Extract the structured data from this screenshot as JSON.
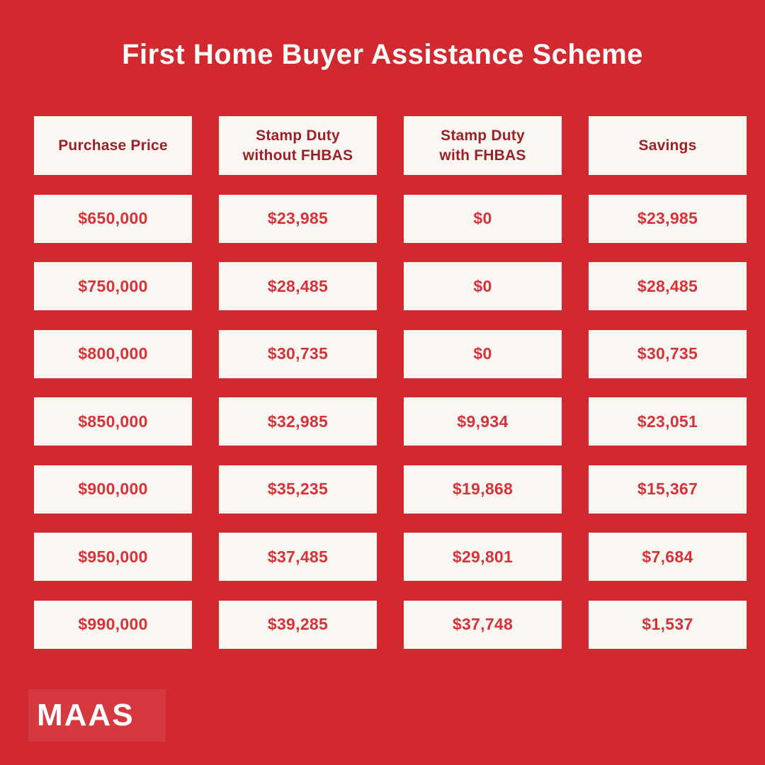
{
  "page": {
    "title": "First Home Buyer Assistance Scheme",
    "background_color": "#d22931",
    "cell_background": "#faf7f3",
    "header_text_color": "#9c2127",
    "value_text_color": "#d5333a",
    "title_color": "#fdfcfa"
  },
  "table": {
    "headers": [
      "Purchase Price",
      "Stamp Duty\nwithout FHBAS",
      "Stamp Duty\nwith FHBAS",
      "Savings"
    ]
  },
  "logo": {
    "text": "MAAS",
    "box_color": "#d63840"
  },
  "chart_data": {
    "type": "table",
    "title": "First Home Buyer Assistance Scheme",
    "columns": [
      "Purchase Price",
      "Stamp Duty without FHBAS",
      "Stamp Duty with FHBAS",
      "Savings"
    ],
    "rows": [
      [
        "$650,000",
        "$23,985",
        "$0",
        "$23,985"
      ],
      [
        "$750,000",
        "$28,485",
        "$0",
        "$28,485"
      ],
      [
        "$800,000",
        "$30,735",
        "$0",
        "$30,735"
      ],
      [
        "$850,000",
        "$32,985",
        "$9,934",
        "$23,051"
      ],
      [
        "$900,000",
        "$35,235",
        "$19,868",
        "$15,367"
      ],
      [
        "$950,000",
        "$37,485",
        "$29,801",
        "$7,684"
      ],
      [
        "$990,000",
        "$39,285",
        "$37,748",
        "$1,537"
      ]
    ]
  }
}
